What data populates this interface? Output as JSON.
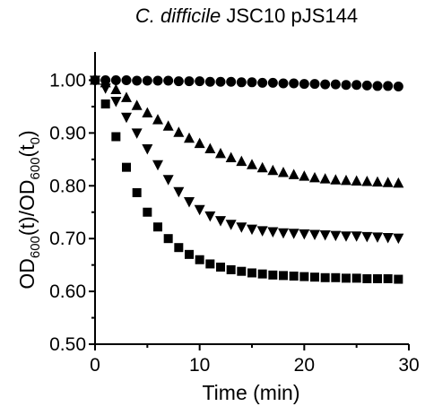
{
  "chart_data": {
    "type": "scatter",
    "title": {
      "organism": "C. difficile",
      "strain": " JSC10 pJS144"
    },
    "xlabel": "Time (min)",
    "ylabel": {
      "num_main": "OD",
      "num_sub": "600",
      "num_paren": "(t)/OD",
      "den_sub": "600",
      "den_open": "(t",
      "den_sub0": "0",
      "den_close": ")"
    },
    "xlim": [
      0,
      30
    ],
    "ylim": [
      0.5,
      1.05
    ],
    "xticks": [
      "0",
      "10",
      "20",
      "30"
    ],
    "yticks": [
      "0.50",
      "0.60",
      "0.70",
      "0.80",
      "0.90",
      "1.00"
    ],
    "grid": false,
    "legend": "none",
    "series": [
      {
        "marker": "circle",
        "color": "#000000",
        "points": [
          [
            0,
            1.0
          ],
          [
            1,
            1.0
          ],
          [
            2,
            1.0
          ],
          [
            3,
            1.0
          ],
          [
            4,
            0.999
          ],
          [
            5,
            0.999
          ],
          [
            6,
            0.999
          ],
          [
            7,
            0.999
          ],
          [
            8,
            0.998
          ],
          [
            9,
            0.998
          ],
          [
            10,
            0.998
          ],
          [
            11,
            0.997
          ],
          [
            12,
            0.997
          ],
          [
            13,
            0.997
          ],
          [
            14,
            0.996
          ],
          [
            15,
            0.996
          ],
          [
            16,
            0.995
          ],
          [
            17,
            0.995
          ],
          [
            18,
            0.994
          ],
          [
            19,
            0.994
          ],
          [
            20,
            0.993
          ],
          [
            21,
            0.993
          ],
          [
            22,
            0.992
          ],
          [
            23,
            0.992
          ],
          [
            24,
            0.991
          ],
          [
            25,
            0.991
          ],
          [
            26,
            0.99
          ],
          [
            27,
            0.989
          ],
          [
            28,
            0.989
          ],
          [
            29,
            0.988
          ]
        ]
      },
      {
        "marker": "triangle-up",
        "color": "#000000",
        "points": [
          [
            0,
            1.0
          ],
          [
            1,
            0.995
          ],
          [
            2,
            0.982
          ],
          [
            3,
            0.967
          ],
          [
            4,
            0.952
          ],
          [
            5,
            0.938
          ],
          [
            6,
            0.925
          ],
          [
            7,
            0.913
          ],
          [
            8,
            0.901
          ],
          [
            9,
            0.89
          ],
          [
            10,
            0.88
          ],
          [
            11,
            0.87
          ],
          [
            12,
            0.861
          ],
          [
            13,
            0.853
          ],
          [
            14,
            0.846
          ],
          [
            15,
            0.84
          ],
          [
            16,
            0.834
          ],
          [
            17,
            0.829
          ],
          [
            18,
            0.825
          ],
          [
            19,
            0.821
          ],
          [
            20,
            0.818
          ],
          [
            21,
            0.815
          ],
          [
            22,
            0.813
          ],
          [
            23,
            0.811
          ],
          [
            24,
            0.81
          ],
          [
            25,
            0.809
          ],
          [
            26,
            0.808
          ],
          [
            27,
            0.807
          ],
          [
            28,
            0.806
          ],
          [
            29,
            0.805
          ]
        ]
      },
      {
        "marker": "triangle-down",
        "color": "#000000",
        "points": [
          [
            0,
            1.0
          ],
          [
            1,
            0.985
          ],
          [
            2,
            0.96
          ],
          [
            3,
            0.93
          ],
          [
            4,
            0.9
          ],
          [
            5,
            0.87
          ],
          [
            6,
            0.84
          ],
          [
            7,
            0.812
          ],
          [
            8,
            0.789
          ],
          [
            9,
            0.77
          ],
          [
            10,
            0.755
          ],
          [
            11,
            0.743
          ],
          [
            12,
            0.734
          ],
          [
            13,
            0.727
          ],
          [
            14,
            0.722
          ],
          [
            15,
            0.718
          ],
          [
            16,
            0.715
          ],
          [
            17,
            0.713
          ],
          [
            18,
            0.711
          ],
          [
            19,
            0.71
          ],
          [
            20,
            0.709
          ],
          [
            21,
            0.708
          ],
          [
            22,
            0.707
          ],
          [
            23,
            0.706
          ],
          [
            24,
            0.705
          ],
          [
            25,
            0.705
          ],
          [
            26,
            0.704
          ],
          [
            27,
            0.703
          ],
          [
            28,
            0.702
          ],
          [
            29,
            0.701
          ]
        ]
      },
      {
        "marker": "square",
        "color": "#000000",
        "points": [
          [
            0,
            1.0
          ],
          [
            1,
            0.955
          ],
          [
            2,
            0.893
          ],
          [
            3,
            0.835
          ],
          [
            4,
            0.787
          ],
          [
            5,
            0.75
          ],
          [
            6,
            0.722
          ],
          [
            7,
            0.7
          ],
          [
            8,
            0.683
          ],
          [
            9,
            0.67
          ],
          [
            10,
            0.66
          ],
          [
            11,
            0.652
          ],
          [
            12,
            0.646
          ],
          [
            13,
            0.641
          ],
          [
            14,
            0.638
          ],
          [
            15,
            0.635
          ],
          [
            16,
            0.633
          ],
          [
            17,
            0.631
          ],
          [
            18,
            0.63
          ],
          [
            19,
            0.629
          ],
          [
            20,
            0.628
          ],
          [
            21,
            0.627
          ],
          [
            22,
            0.626
          ],
          [
            23,
            0.626
          ],
          [
            24,
            0.625
          ],
          [
            25,
            0.625
          ],
          [
            26,
            0.624
          ],
          [
            27,
            0.624
          ],
          [
            28,
            0.624
          ],
          [
            29,
            0.623
          ]
        ]
      }
    ]
  }
}
